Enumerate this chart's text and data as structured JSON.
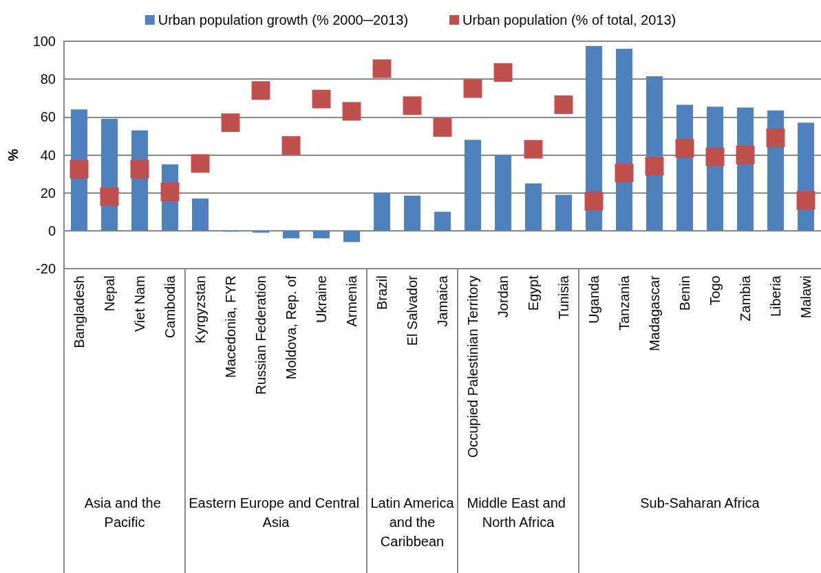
{
  "chart_data": {
    "type": "bar",
    "ylabel": "%",
    "categories": [
      "Bangladesh",
      "Nepal",
      "Viet Nam",
      "Cambodia",
      "Kyrgyzstan",
      "Macedonia, FYR",
      "Russian Federation",
      "Moldova, Rep. of",
      "Ukraine",
      "Armenia",
      "Brazil",
      "El Salvador",
      "Jamaica",
      "Occupied Palestinian Territory",
      "Jordan",
      "Egypt",
      "Tunisia",
      "Uganda",
      "Tanzania",
      "Madagascar",
      "Benin",
      "Togo",
      "Zambia",
      "Liberia",
      "Malawi"
    ],
    "series": [
      {
        "name": "Urban population growth (% 2000─2013)",
        "color": "#4f81bd",
        "values": [
          64,
          59,
          53,
          35,
          17,
          -0.5,
          -1,
          -4,
          -4,
          -6,
          20,
          18.5,
          10,
          48,
          40,
          25,
          19,
          97.5,
          96,
          81.5,
          66.5,
          65.5,
          65,
          63.5,
          57
        ]
      },
      {
        "name": "Urban population (% of total, 2013)",
        "type": "scatter",
        "marker": "square",
        "color": "#c0504d",
        "values": [
          32.5,
          18,
          32.5,
          20.5,
          35.5,
          57,
          74,
          45,
          69.5,
          63,
          85.5,
          66,
          54.5,
          75,
          83.5,
          43,
          66.5,
          15.5,
          30.5,
          34,
          43.5,
          39,
          40,
          49,
          16
        ]
      }
    ],
    "ylim": [
      -20,
      100
    ],
    "yticks": [
      -20,
      0,
      20,
      40,
      60,
      80,
      100
    ],
    "grid": "y",
    "legend": "top",
    "annotations": [
      "Asia and the Pacific",
      "Eastern Europe and Central Asia",
      "Latin America and the Caribbean",
      "Middle East and North Africa",
      "Sub-Saharan Africa"
    ]
  }
}
